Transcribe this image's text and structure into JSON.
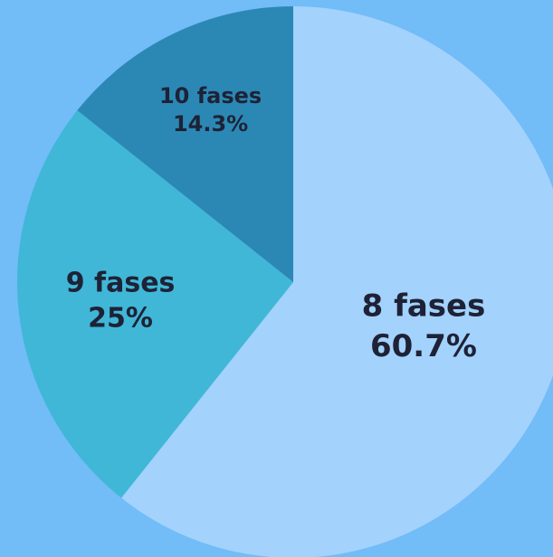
{
  "chart_data": {
    "type": "pie",
    "categories": [
      "8 fases",
      "9 fases",
      "10 fases"
    ],
    "values": [
      60.7,
      25,
      14.3
    ],
    "value_labels": [
      "60.7%",
      "25%",
      "14.3%"
    ],
    "colors": [
      "#a3d2fc",
      "#40b7d7",
      "#2b88b4"
    ]
  }
}
